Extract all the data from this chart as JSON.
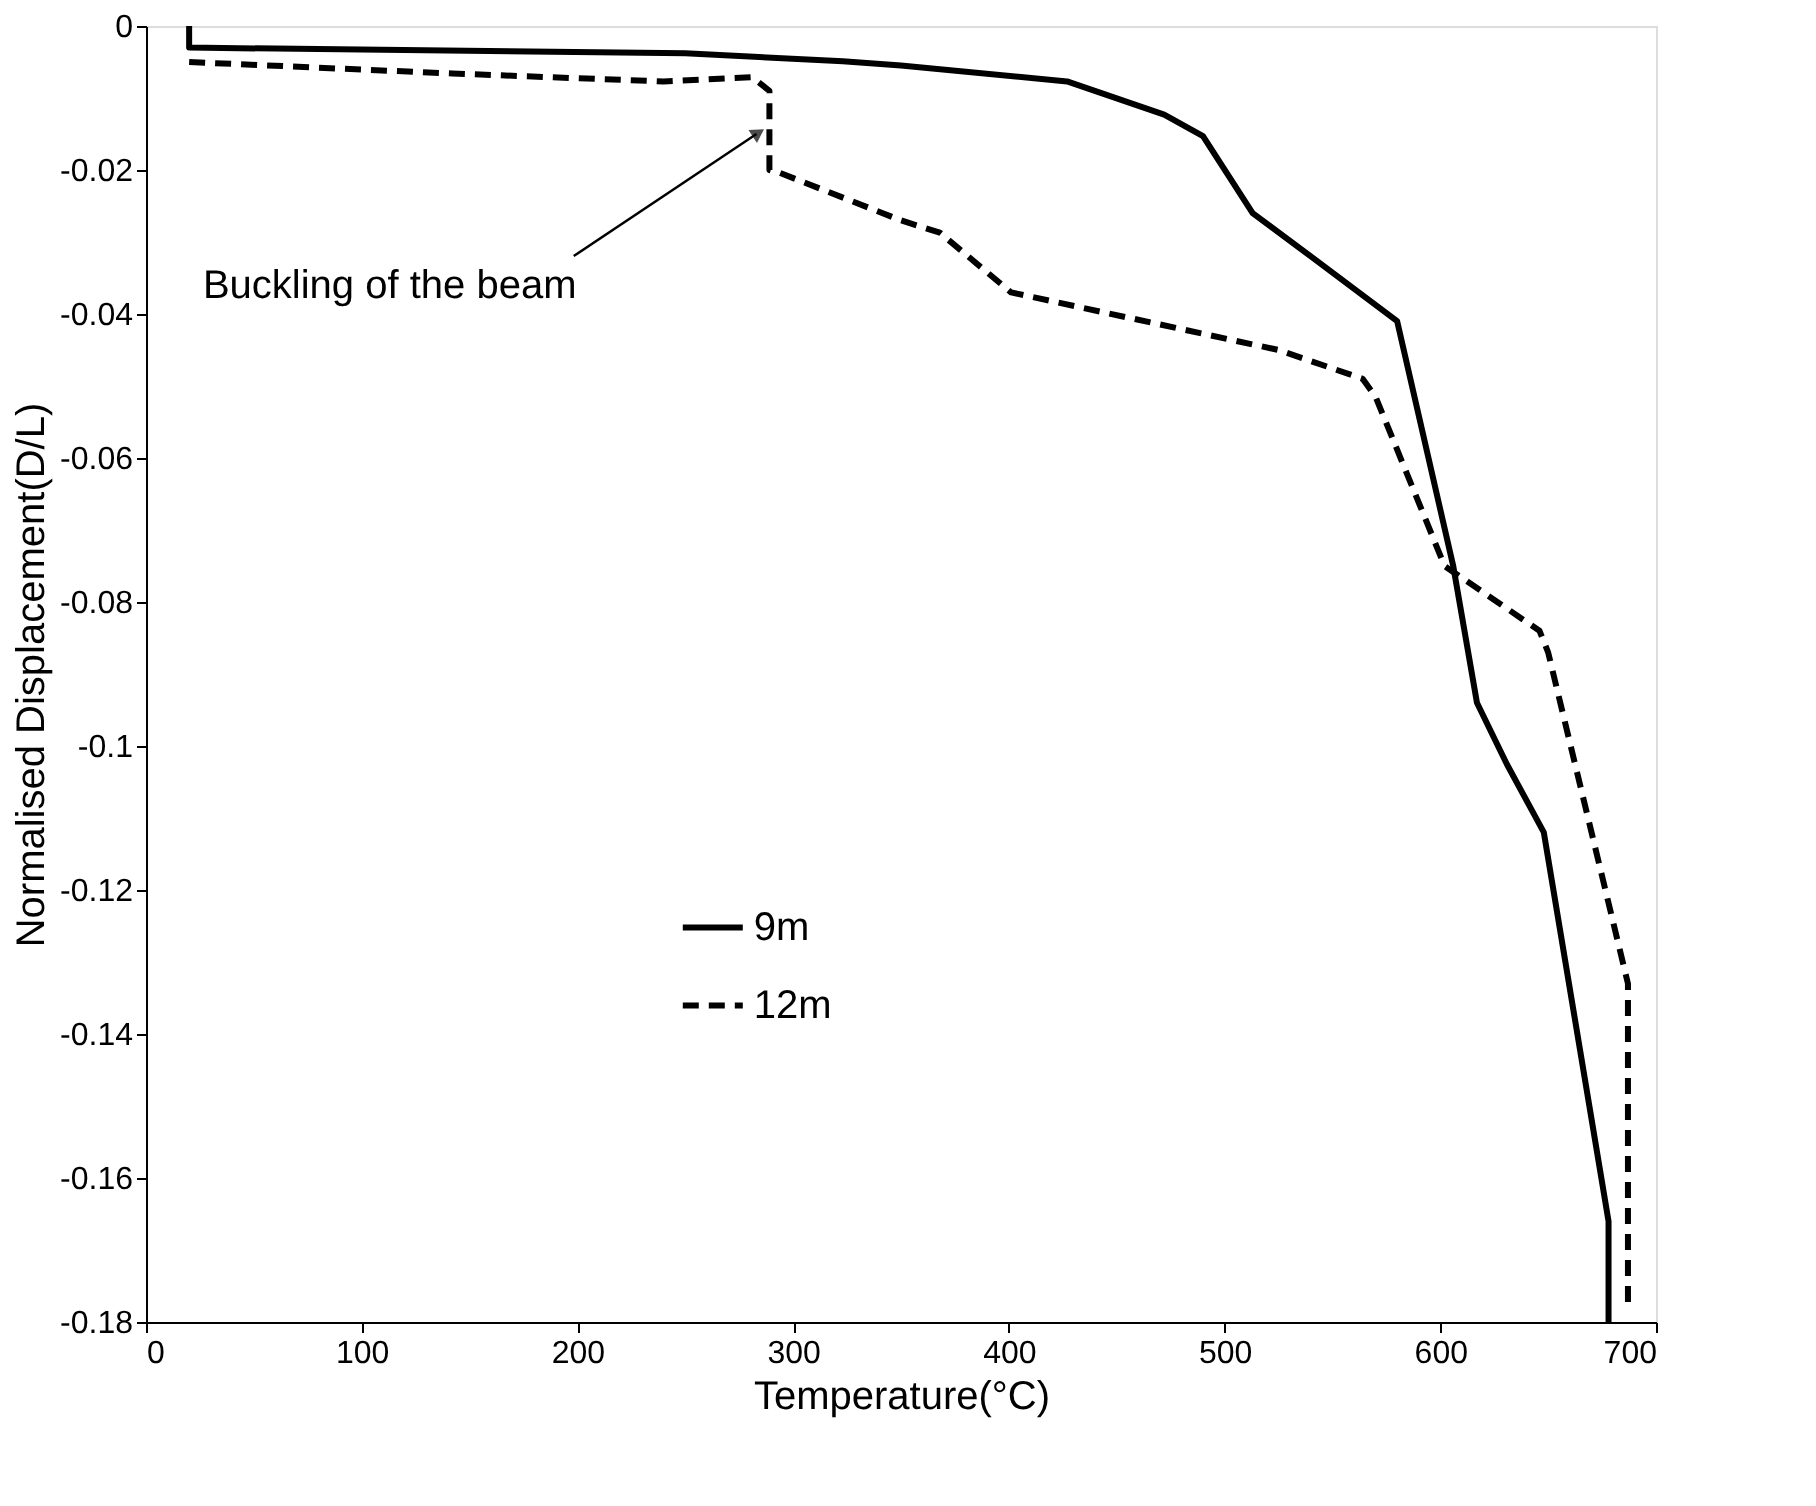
{
  "chart_data": {
    "type": "line",
    "xlabel": "Temperature(°C)",
    "ylabel": "Normalised Displacement(D/L)",
    "xlim": [
      0,
      700
    ],
    "xticks": [
      0,
      100,
      200,
      300,
      400,
      500,
      600,
      700
    ],
    "ylim": [
      -0.18,
      0
    ],
    "yticks": [
      0,
      -0.02,
      -0.04,
      -0.06,
      -0.08,
      -0.1,
      -0.12,
      -0.14,
      -0.16,
      -0.18
    ],
    "grid": false,
    "legend": "center",
    "marker": "none",
    "annotations": [
      {
        "text": "Buckling of the beam",
        "x": 283,
        "y": -0.015
      }
    ],
    "series": [
      {
        "name": "9m",
        "color": "#000000",
        "line_style": "solid",
        "x": [
          20,
          20,
          250,
          323,
          350,
          427,
          472,
          490,
          513,
          540,
          580,
          606,
          617,
          631,
          648,
          678,
          678
        ],
        "values": [
          0,
          -0.003,
          -0.0038,
          -0.0049,
          -0.0055,
          -0.0077,
          -0.0123,
          -0.0153,
          -0.026,
          -0.032,
          -0.041,
          -0.075,
          -0.094,
          -0.1026,
          -0.112,
          -0.166,
          -0.18
        ]
      },
      {
        "name": "12m",
        "color": "#000000",
        "line_style": "dashed",
        "x": [
          20,
          142,
          240,
          281,
          289,
          289,
          293,
          350,
          368,
          401,
          525,
          564,
          570,
          602,
          646,
          650,
          687,
          687
        ],
        "values": [
          -0.005,
          -0.0066,
          -0.0077,
          -0.0071,
          -0.009,
          -0.02,
          -0.0203,
          -0.027,
          -0.0287,
          -0.037,
          -0.045,
          -0.049,
          -0.0515,
          -0.075,
          -0.084,
          -0.087,
          -0.133,
          -0.178
        ]
      }
    ]
  }
}
